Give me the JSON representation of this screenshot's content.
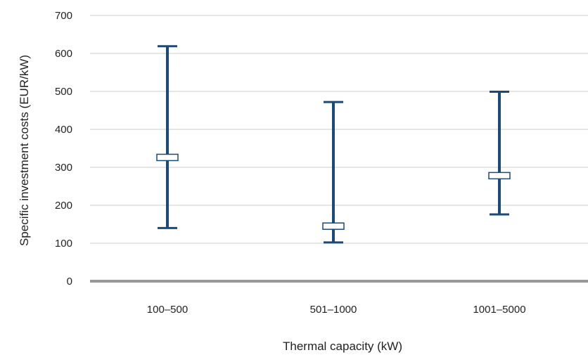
{
  "chart_data": {
    "type": "errorbar",
    "xlabel": "Thermal capacity (kW)",
    "ylabel": "Specific investment costs (EUR/kW)",
    "ylim": [
      0,
      700
    ],
    "yticks": [
      "0",
      "100",
      "200",
      "300",
      "400",
      "500",
      "600",
      "700"
    ],
    "grid": true,
    "categories": [
      "100–500",
      "501–1000",
      "1001–5000"
    ],
    "series": [
      {
        "min": [
          140,
          102,
          176
        ],
        "max": [
          619,
          472,
          499
        ],
        "mid": [
          326,
          145,
          278
        ]
      }
    ],
    "colors": {
      "bar": "#1a4a7a",
      "grid": "#cccccc",
      "baseline": "#999999",
      "marker_fill": "#ffffff"
    }
  }
}
